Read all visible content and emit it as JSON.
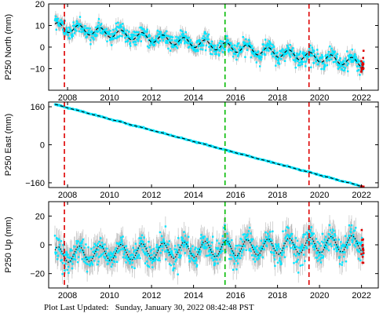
{
  "footer": {
    "prefix": "Plot Last Updated:",
    "timestamp": "Sunday, January 30, 2022 08:42:48 PST"
  },
  "colors": {
    "raw_points": "#00e5ff",
    "error_bars": "#b8b8b8",
    "model_fit": "#000000",
    "outliers": "#dd0000",
    "offset_equipment": "#dd0000",
    "offset_earthquake": "#00bb00"
  },
  "chart_data": [
    {
      "type": "scatter",
      "station": "P250",
      "component": "North",
      "ylabel": "P250 North (mm)",
      "xlim": [
        2007.1,
        2022.8
      ],
      "ylim": [
        -20,
        20
      ],
      "x_ticks": [
        2008,
        2010,
        2012,
        2014,
        2016,
        2018,
        2020,
        2022
      ],
      "x_tick_labels": [
        "2008",
        "2010",
        "2012",
        "2014",
        "2016",
        "2018",
        "2020",
        "2022"
      ],
      "y_ticks": [
        -20,
        -10,
        0,
        10,
        20
      ],
      "y_tick_labels": [
        "",
        "−10",
        "0",
        "10",
        "20"
      ],
      "series_start": 2007.4,
      "series_end": 2022.1,
      "trend_mm_per_yr": -1.15,
      "intercept_mm": 9.5,
      "seasonal_amplitude_mm": 2.0,
      "noise_mm": 1.8,
      "error_bar_mm": 2.5,
      "fit_style": "dashed",
      "offsets": [
        {
          "x": 2007.85,
          "kind": "equipment"
        },
        {
          "x": 2015.5,
          "kind": "earthquake"
        },
        {
          "x": 2019.5,
          "kind": "equipment"
        }
      ]
    },
    {
      "type": "scatter",
      "station": "P250",
      "component": "East",
      "ylabel": "P250 East (mm)",
      "xlim": [
        2007.1,
        2022.8
      ],
      "ylim": [
        -180,
        180
      ],
      "x_ticks": [
        2008,
        2010,
        2012,
        2014,
        2016,
        2018,
        2020,
        2022
      ],
      "x_tick_labels": [
        "2008",
        "2010",
        "2012",
        "2014",
        "2016",
        "2018",
        "2020",
        "2022"
      ],
      "y_ticks": [
        -160,
        0,
        160
      ],
      "y_tick_labels": [
        "−160",
        "0",
        "160"
      ],
      "series_start": 2007.4,
      "series_end": 2022.1,
      "trend_mm_per_yr": -23.6,
      "intercept_mm": 170,
      "seasonal_amplitude_mm": 0.8,
      "noise_mm": 1.2,
      "error_bar_mm": 1.5,
      "fit_style": "dashed",
      "offsets": [
        {
          "x": 2007.85,
          "kind": "equipment"
        },
        {
          "x": 2015.5,
          "kind": "earthquake"
        },
        {
          "x": 2019.5,
          "kind": "equipment"
        }
      ]
    },
    {
      "type": "scatter",
      "station": "P250",
      "component": "Up",
      "ylabel": "P250 Up (mm)",
      "xlim": [
        2007.1,
        2022.8
      ],
      "ylim": [
        -30,
        30
      ],
      "x_ticks": [
        2008,
        2010,
        2012,
        2014,
        2016,
        2018,
        2020,
        2022
      ],
      "x_tick_labels": [
        "2008",
        "2010",
        "2012",
        "2014",
        "2016",
        "2018",
        "2020",
        "2022"
      ],
      "y_ticks": [
        -20,
        0,
        20
      ],
      "y_tick_labels": [
        "−20",
        "0",
        "20"
      ],
      "series_start": 2007.4,
      "series_end": 2022.1,
      "trend_mm_per_yr": 0.55,
      "intercept_mm": -7,
      "seasonal_amplitude_mm": 5.5,
      "noise_mm": 4.5,
      "error_bar_mm": 7,
      "fit_style": "dotted",
      "offsets": [
        {
          "x": 2007.85,
          "kind": "equipment"
        },
        {
          "x": 2015.5,
          "kind": "earthquake"
        },
        {
          "x": 2019.5,
          "kind": "equipment"
        }
      ]
    }
  ]
}
